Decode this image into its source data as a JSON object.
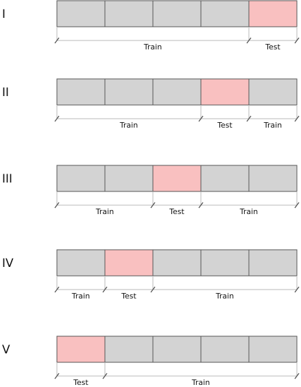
{
  "colors": {
    "train_cell": "#d3d3d3",
    "test_cell": "#f9c0c0",
    "cell_border": "#555555"
  },
  "folds": [
    {
      "label": "I",
      "cells": [
        "train",
        "train",
        "train",
        "train",
        "test"
      ],
      "spans": [
        {
          "label": "Train",
          "from": 0,
          "to": 4
        },
        {
          "label": "Test",
          "from": 4,
          "to": 5
        }
      ]
    },
    {
      "label": "II",
      "cells": [
        "train",
        "train",
        "train",
        "test",
        "train"
      ],
      "spans": [
        {
          "label": "Train",
          "from": 0,
          "to": 3
        },
        {
          "label": "Test",
          "from": 3,
          "to": 4
        },
        {
          "label": "Train",
          "from": 4,
          "to": 5
        }
      ]
    },
    {
      "label": "III",
      "cells": [
        "train",
        "train",
        "test",
        "train",
        "train"
      ],
      "spans": [
        {
          "label": "Train",
          "from": 0,
          "to": 2
        },
        {
          "label": "Test",
          "from": 2,
          "to": 3
        },
        {
          "label": "Train",
          "from": 3,
          "to": 5
        }
      ]
    },
    {
      "label": "IV",
      "cells": [
        "train",
        "test",
        "train",
        "train",
        "train"
      ],
      "spans": [
        {
          "label": "Train",
          "from": 0,
          "to": 1
        },
        {
          "label": "Test",
          "from": 1,
          "to": 2
        },
        {
          "label": "Train",
          "from": 2,
          "to": 5
        }
      ]
    },
    {
      "label": "V",
      "cells": [
        "test",
        "train",
        "train",
        "train",
        "train"
      ],
      "spans": [
        {
          "label": "Test",
          "from": 0,
          "to": 1
        },
        {
          "label": "Train",
          "from": 1,
          "to": 5
        }
      ]
    }
  ]
}
